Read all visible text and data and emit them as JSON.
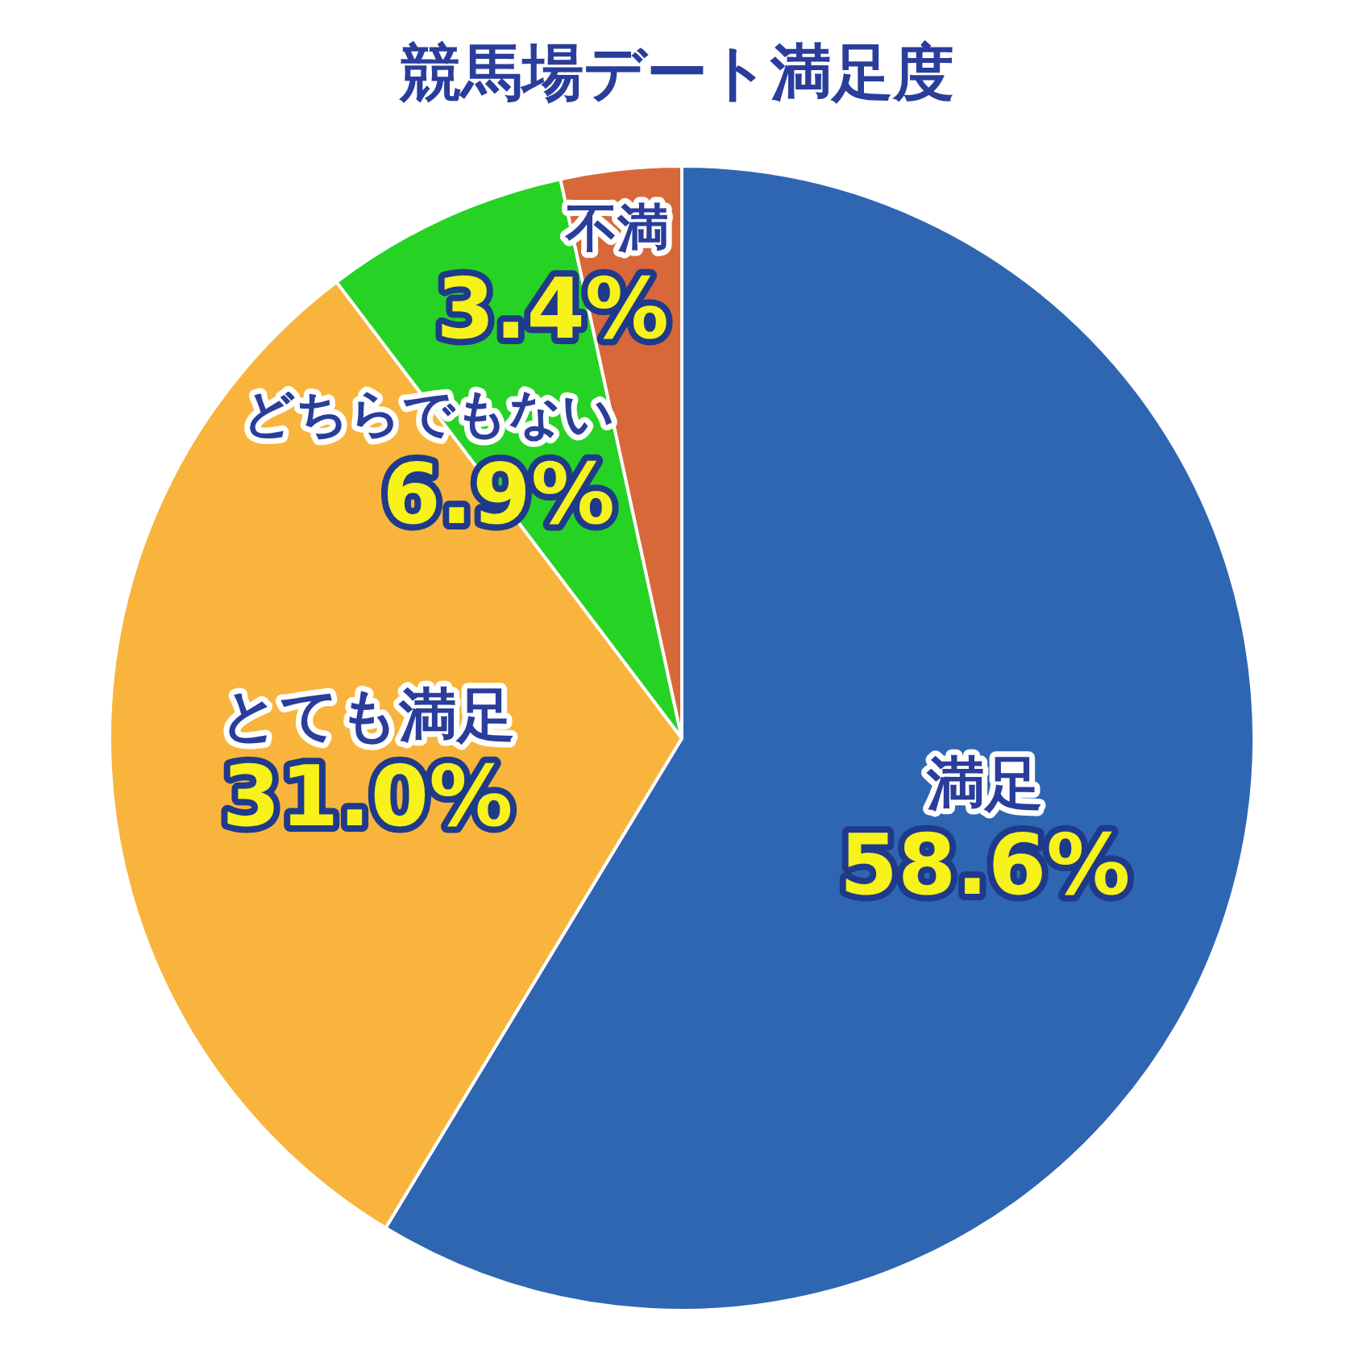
{
  "chart_data": {
    "type": "pie",
    "title": "競馬場デート満足度",
    "categories": [
      "満足",
      "とても満足",
      "どちらでもない",
      "不満"
    ],
    "values": [
      58.6,
      31.0,
      6.9,
      3.4
    ],
    "colors": [
      "#2f66b2",
      "#f8b43c",
      "#26d324",
      "#d8683a"
    ],
    "value_labels": [
      "58.6%",
      "31.0%",
      "6.9%",
      "3.4%"
    ]
  }
}
